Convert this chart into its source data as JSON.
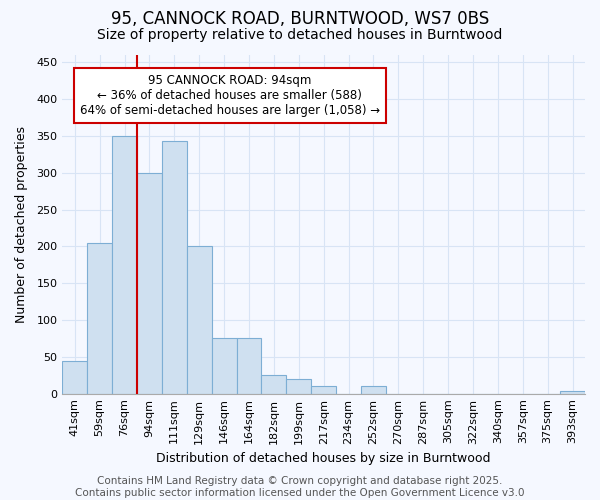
{
  "title1": "95, CANNOCK ROAD, BURNTWOOD, WS7 0BS",
  "title2": "Size of property relative to detached houses in Burntwood",
  "xlabel": "Distribution of detached houses by size in Burntwood",
  "ylabel": "Number of detached properties",
  "categories": [
    "41sqm",
    "59sqm",
    "76sqm",
    "94sqm",
    "111sqm",
    "129sqm",
    "146sqm",
    "164sqm",
    "182sqm",
    "199sqm",
    "217sqm",
    "234sqm",
    "252sqm",
    "270sqm",
    "287sqm",
    "305sqm",
    "322sqm",
    "340sqm",
    "357sqm",
    "375sqm",
    "393sqm"
  ],
  "values": [
    45,
    205,
    350,
    300,
    343,
    200,
    75,
    75,
    25,
    20,
    10,
    0,
    10,
    0,
    0,
    0,
    0,
    0,
    0,
    0,
    3
  ],
  "bar_color": "#cfe0f0",
  "bar_edge_color": "#7daed4",
  "red_line_index": 3,
  "red_line_color": "#cc0000",
  "annotation_text": "95 CANNOCK ROAD: 94sqm\n← 36% of detached houses are smaller (588)\n64% of semi-detached houses are larger (1,058) →",
  "annotation_box_facecolor": "#ffffff",
  "annotation_box_edgecolor": "#cc0000",
  "ylim": [
    0,
    460
  ],
  "yticks": [
    0,
    50,
    100,
    150,
    200,
    250,
    300,
    350,
    400,
    450
  ],
  "background_color": "#f5f8ff",
  "grid_color": "#d8e4f5",
  "footer_text": "Contains HM Land Registry data © Crown copyright and database right 2025.\nContains public sector information licensed under the Open Government Licence v3.0",
  "title1_fontsize": 12,
  "title2_fontsize": 10,
  "xlabel_fontsize": 9,
  "ylabel_fontsize": 9,
  "tick_fontsize": 8,
  "annotation_fontsize": 8.5,
  "footer_fontsize": 7.5
}
